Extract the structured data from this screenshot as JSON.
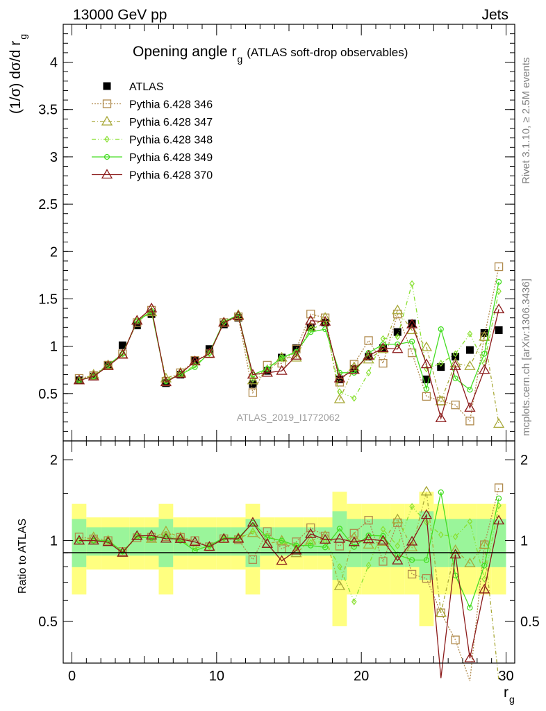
{
  "header": {
    "left": "13000 GeV pp",
    "right": "Jets"
  },
  "side_labels": {
    "rivet": "Rivet 3.1.10, ≥ 2.5M events",
    "mcplots": "mcplots.cern.ch [arXiv:1306.3436]"
  },
  "chart_data": [
    {
      "type": "line",
      "title": "Opening angle r",
      "title_sub": "g",
      "title_suffix": "(ATLAS soft-drop observables)",
      "watermark": "ATLAS_2019_I1772062",
      "ylabel": "(1/σ) dσ/d r",
      "ylabel_sub": "g",
      "xlim": [
        -0.6,
        30.6
      ],
      "ylim": [
        0,
        4.4
      ],
      "yticks": [
        "0.5",
        "1",
        "1.5",
        "2",
        "2.5",
        "3",
        "3.5",
        "4"
      ],
      "x": [
        0.5,
        1.5,
        2.5,
        3.5,
        4.5,
        5.5,
        6.5,
        7.5,
        8.5,
        9.5,
        10.5,
        11.5,
        12.5,
        13.5,
        14.5,
        15.5,
        16.5,
        17.5,
        18.5,
        19.5,
        20.5,
        21.5,
        22.5,
        23.5,
        24.5,
        25.5,
        26.5,
        27.5,
        28.5,
        29.5
      ],
      "legend_position": "top-left",
      "series": [
        {
          "name": "ATLAS",
          "color": "#000000",
          "marker": "filled-square",
          "values": [
            0.64,
            0.68,
            0.8,
            1.01,
            1.22,
            1.34,
            0.61,
            0.7,
            0.85,
            0.97,
            1.23,
            1.3,
            0.6,
            0.74,
            0.88,
            0.98,
            1.2,
            1.25,
            0.65,
            0.76,
            0.89,
            0.98,
            1.15,
            1.24,
            0.65,
            0.78,
            0.89,
            0.96,
            1.14,
            1.17
          ]
        },
        {
          "name": "Pythia 6.428 346",
          "color": "#b08a4c",
          "marker": "open-square",
          "values": [
            0.66,
            0.69,
            0.8,
            0.92,
            1.25,
            1.38,
            0.63,
            0.72,
            0.85,
            0.92,
            1.25,
            1.31,
            0.51,
            0.8,
            0.82,
            0.97,
            1.34,
            1.3,
            0.62,
            0.81,
            1.06,
            0.82,
            1.34,
            0.93,
            0.47,
            0.42,
            0.38,
            0.21,
            1.1,
            1.84
          ]
        },
        {
          "name": "Pythia 6.428 347",
          "color": "#a8a838",
          "marker": "open-triangle",
          "values": [
            0.64,
            0.7,
            0.8,
            0.91,
            1.27,
            1.36,
            0.66,
            0.72,
            0.84,
            0.92,
            1.25,
            1.33,
            0.64,
            0.72,
            0.88,
            0.88,
            1.2,
            1.3,
            0.44,
            0.78,
            0.86,
            0.97,
            1.38,
            1.17,
            0.99,
            0.42,
            0.82,
            0.79,
            1.1,
            0.18
          ]
        },
        {
          "name": "Pythia 6.428 348",
          "color": "#88e030",
          "marker": "open-diamond",
          "values": [
            0.65,
            0.68,
            0.8,
            0.92,
            1.27,
            1.37,
            0.64,
            0.7,
            0.8,
            0.92,
            1.25,
            1.33,
            0.65,
            0.77,
            0.87,
            0.93,
            1.18,
            1.24,
            0.52,
            0.45,
            0.72,
            1.08,
            1.1,
            1.66,
            0.76,
            0.82,
            0.92,
            1.13,
            0.82,
            1.58
          ]
        },
        {
          "name": "Pythia 6.428 349",
          "color": "#44dd22",
          "marker": "open-circle",
          "values": [
            0.64,
            0.68,
            0.8,
            0.92,
            1.26,
            1.37,
            0.63,
            0.7,
            0.78,
            0.93,
            1.26,
            1.33,
            0.7,
            0.76,
            0.88,
            0.94,
            1.15,
            1.18,
            0.72,
            0.72,
            0.93,
            1.02,
            1.02,
            1.05,
            0.55,
            1.18,
            0.66,
            0.54,
            0.92,
            1.68
          ]
        },
        {
          "name": "Pythia 6.428 370",
          "color": "#8b1a1a",
          "marker": "open-triangle",
          "values": [
            0.64,
            0.68,
            0.79,
            0.91,
            1.27,
            1.4,
            0.62,
            0.71,
            0.84,
            0.92,
            1.25,
            1.32,
            0.7,
            0.72,
            0.74,
            0.9,
            1.27,
            1.26,
            0.66,
            0.75,
            0.9,
            0.98,
            0.97,
            1.23,
            0.81,
            0.24,
            0.79,
            0.35,
            0.75,
            1.39
          ]
        }
      ]
    },
    {
      "type": "line",
      "ylabel": "Ratio to ATLAS",
      "xlabel": "r",
      "xlabel_sub": "g",
      "xlim": [
        -0.6,
        30.6
      ],
      "ylim": [
        0.35,
        2.35
      ],
      "xticks": [
        "0",
        "10",
        "20",
        "30"
      ],
      "yticks": [
        "0.5",
        "1",
        "2"
      ],
      "reference_line": 1
    }
  ]
}
